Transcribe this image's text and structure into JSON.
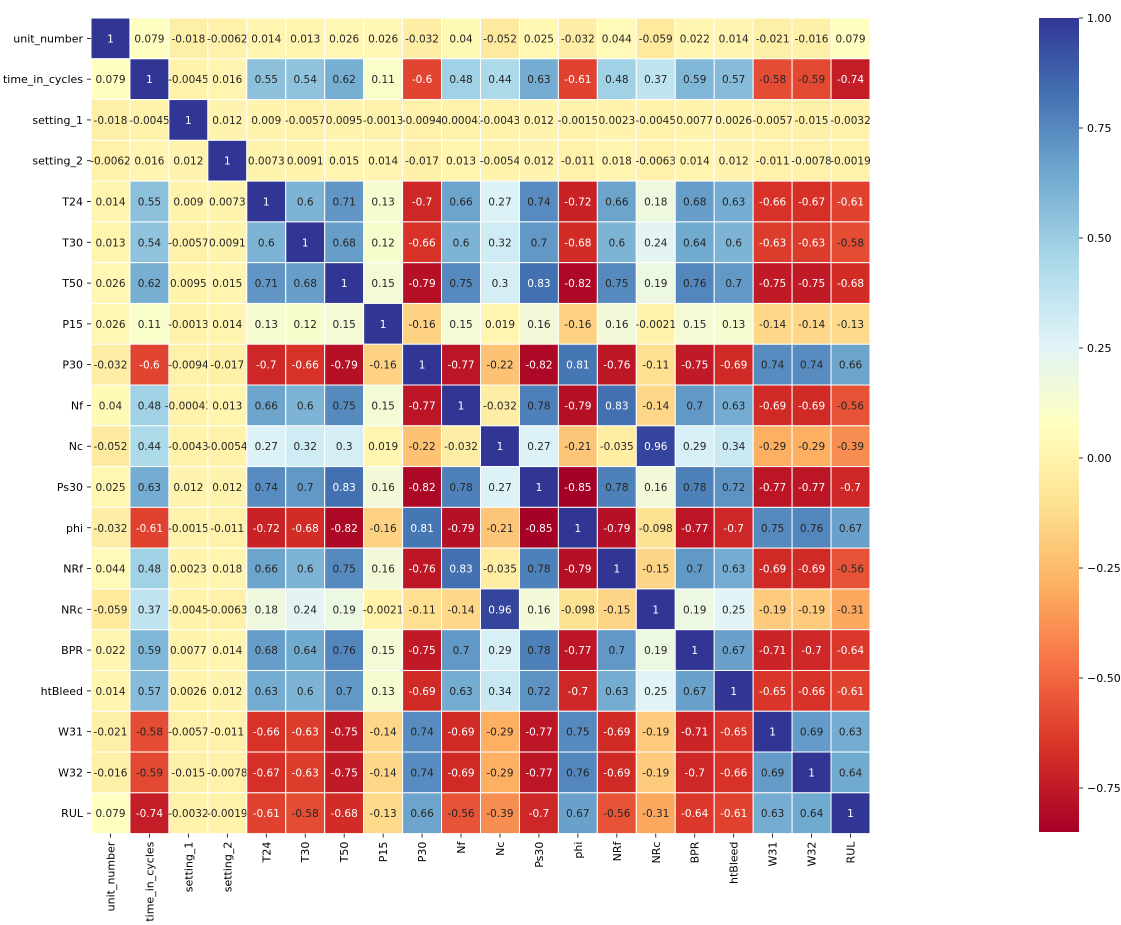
{
  "chart_data": {
    "type": "heatmap",
    "title": "",
    "xlabel": "",
    "ylabel": "",
    "labels": [
      "unit_number",
      "time_in_cycles",
      "setting_1",
      "setting_2",
      "T24",
      "T30",
      "T50",
      "P15",
      "P30",
      "Nf",
      "Nc",
      "Ps30",
      "phi",
      "NRf",
      "NRc",
      "BPR",
      "htBleed",
      "W31",
      "W32",
      "RUL"
    ],
    "colormap": "RdYlBu",
    "vmin": -0.85,
    "vmax": 1.0,
    "colorbar_ticks": [
      1.0,
      0.75,
      0.5,
      0.25,
      0.0,
      -0.25,
      -0.5,
      -0.75
    ],
    "colorbar_tick_labels": [
      "1.00",
      "0.75",
      "0.50",
      "0.25",
      "0.00",
      "−0.25",
      "−0.50",
      "−0.75"
    ],
    "annotations": [
      [
        "1",
        "0.079",
        "-0.018",
        "-0.0062",
        "0.014",
        "0.013",
        "0.026",
        "0.026",
        "-0.032",
        "0.04",
        "-0.052",
        "0.025",
        "-0.032",
        "0.044",
        "-0.059",
        "0.022",
        "0.014",
        "-0.021",
        "-0.016",
        "0.079"
      ],
      [
        "0.079",
        "1",
        "-0.0045",
        "0.016",
        "0.55",
        "0.54",
        "0.62",
        "0.11",
        "-0.6",
        "0.48",
        "0.44",
        "0.63",
        "-0.61",
        "0.48",
        "0.37",
        "0.59",
        "0.57",
        "-0.58",
        "-0.59",
        "-0.74"
      ],
      [
        "-0.018",
        "-0.0045",
        "1",
        "0.012",
        "0.009",
        "-0.0057",
        "0.0095",
        "-0.0013",
        "-0.0094",
        "-0.00043",
        "-0.0043",
        "0.012",
        "-0.0015",
        "0.0023",
        "-0.0045",
        "0.0077",
        "0.0026",
        "-0.0057",
        "-0.015",
        "-0.0032"
      ],
      [
        "-0.0062",
        "0.016",
        "0.012",
        "1",
        "0.0073",
        "0.0091",
        "0.015",
        "0.014",
        "-0.017",
        "0.013",
        "-0.0054",
        "0.012",
        "-0.011",
        "0.018",
        "-0.0063",
        "0.014",
        "0.012",
        "-0.011",
        "-0.0078",
        "-0.0019"
      ],
      [
        "0.014",
        "0.55",
        "0.009",
        "0.0073",
        "1",
        "0.6",
        "0.71",
        "0.13",
        "-0.7",
        "0.66",
        "0.27",
        "0.74",
        "-0.72",
        "0.66",
        "0.18",
        "0.68",
        "0.63",
        "-0.66",
        "-0.67",
        "-0.61"
      ],
      [
        "0.013",
        "0.54",
        "-0.0057",
        "0.0091",
        "0.6",
        "1",
        "0.68",
        "0.12",
        "-0.66",
        "0.6",
        "0.32",
        "0.7",
        "-0.68",
        "0.6",
        "0.24",
        "0.64",
        "0.6",
        "-0.63",
        "-0.63",
        "-0.58"
      ],
      [
        "0.026",
        "0.62",
        "0.0095",
        "0.015",
        "0.71",
        "0.68",
        "1",
        "0.15",
        "-0.79",
        "0.75",
        "0.3",
        "0.83",
        "-0.82",
        "0.75",
        "0.19",
        "0.76",
        "0.7",
        "-0.75",
        "-0.75",
        "-0.68"
      ],
      [
        "0.026",
        "0.11",
        "-0.0013",
        "0.014",
        "0.13",
        "0.12",
        "0.15",
        "1",
        "-0.16",
        "0.15",
        "0.019",
        "0.16",
        "-0.16",
        "0.16",
        "-0.0021",
        "0.15",
        "0.13",
        "-0.14",
        "-0.14",
        "-0.13"
      ],
      [
        "-0.032",
        "-0.6",
        "-0.0094",
        "-0.017",
        "-0.7",
        "-0.66",
        "-0.79",
        "-0.16",
        "1",
        "-0.77",
        "-0.22",
        "-0.82",
        "0.81",
        "-0.76",
        "-0.11",
        "-0.75",
        "-0.69",
        "0.74",
        "0.74",
        "0.66"
      ],
      [
        "0.04",
        "0.48",
        "-0.00043",
        "0.013",
        "0.66",
        "0.6",
        "0.75",
        "0.15",
        "-0.77",
        "1",
        "-0.032",
        "0.78",
        "-0.79",
        "0.83",
        "-0.14",
        "0.7",
        "0.63",
        "-0.69",
        "-0.69",
        "-0.56"
      ],
      [
        "-0.052",
        "0.44",
        "-0.0043",
        "-0.0054",
        "0.27",
        "0.32",
        "0.3",
        "0.019",
        "-0.22",
        "-0.032",
        "1",
        "0.27",
        "-0.21",
        "-0.035",
        "0.96",
        "0.29",
        "0.34",
        "-0.29",
        "-0.29",
        "-0.39"
      ],
      [
        "0.025",
        "0.63",
        "0.012",
        "0.012",
        "0.74",
        "0.7",
        "0.83",
        "0.16",
        "-0.82",
        "0.78",
        "0.27",
        "1",
        "-0.85",
        "0.78",
        "0.16",
        "0.78",
        "0.72",
        "-0.77",
        "-0.77",
        "-0.7"
      ],
      [
        "-0.032",
        "-0.61",
        "-0.0015",
        "-0.011",
        "-0.72",
        "-0.68",
        "-0.82",
        "-0.16",
        "0.81",
        "-0.79",
        "-0.21",
        "-0.85",
        "1",
        "-0.79",
        "-0.098",
        "-0.77",
        "-0.7",
        "0.75",
        "0.76",
        "0.67"
      ],
      [
        "0.044",
        "0.48",
        "0.0023",
        "0.018",
        "0.66",
        "0.6",
        "0.75",
        "0.16",
        "-0.76",
        "0.83",
        "-0.035",
        "0.78",
        "-0.79",
        "1",
        "-0.15",
        "0.7",
        "0.63",
        "-0.69",
        "-0.69",
        "-0.56"
      ],
      [
        "-0.059",
        "0.37",
        "-0.0045",
        "-0.0063",
        "0.18",
        "0.24",
        "0.19",
        "-0.0021",
        "-0.11",
        "-0.14",
        "0.96",
        "0.16",
        "-0.098",
        "-0.15",
        "1",
        "0.19",
        "0.25",
        "-0.19",
        "-0.19",
        "-0.31"
      ],
      [
        "0.022",
        "0.59",
        "0.0077",
        "0.014",
        "0.68",
        "0.64",
        "0.76",
        "0.15",
        "-0.75",
        "0.7",
        "0.29",
        "0.78",
        "-0.77",
        "0.7",
        "0.19",
        "1",
        "0.67",
        "-0.71",
        "-0.7",
        "-0.64"
      ],
      [
        "0.014",
        "0.57",
        "0.0026",
        "0.012",
        "0.63",
        "0.6",
        "0.7",
        "0.13",
        "-0.69",
        "0.63",
        "0.34",
        "0.72",
        "-0.7",
        "0.63",
        "0.25",
        "0.67",
        "1",
        "-0.65",
        "-0.66",
        "-0.61"
      ],
      [
        "-0.021",
        "-0.58",
        "-0.0057",
        "-0.011",
        "-0.66",
        "-0.63",
        "-0.75",
        "-0.14",
        "0.74",
        "-0.69",
        "-0.29",
        "-0.77",
        "0.75",
        "-0.69",
        "-0.19",
        "-0.71",
        "-0.65",
        "1",
        "0.69",
        "0.63"
      ],
      [
        "-0.016",
        "-0.59",
        "-0.015",
        "-0.0078",
        "-0.67",
        "-0.63",
        "-0.75",
        "-0.14",
        "0.74",
        "-0.69",
        "-0.29",
        "-0.77",
        "0.76",
        "-0.69",
        "-0.19",
        "-0.7",
        "-0.66",
        "0.69",
        "1",
        "0.64"
      ],
      [
        "0.079",
        "-0.74",
        "-0.0032",
        "-0.0019",
        "-0.61",
        "-0.58",
        "-0.68",
        "-0.13",
        "0.66",
        "-0.56",
        "-0.39",
        "-0.7",
        "0.67",
        "-0.56",
        "-0.31",
        "-0.64",
        "-0.61",
        "0.63",
        "0.64",
        "1"
      ]
    ]
  }
}
